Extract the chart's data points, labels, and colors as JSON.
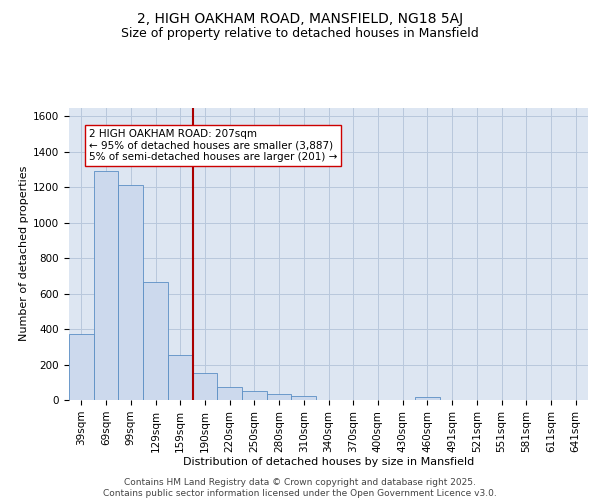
{
  "title": "2, HIGH OAKHAM ROAD, MANSFIELD, NG18 5AJ",
  "subtitle": "Size of property relative to detached houses in Mansfield",
  "xlabel": "Distribution of detached houses by size in Mansfield",
  "ylabel": "Number of detached properties",
  "categories": [
    "39sqm",
    "69sqm",
    "99sqm",
    "129sqm",
    "159sqm",
    "190sqm",
    "220sqm",
    "250sqm",
    "280sqm",
    "310sqm",
    "340sqm",
    "370sqm",
    "400sqm",
    "430sqm",
    "460sqm",
    "491sqm",
    "521sqm",
    "551sqm",
    "581sqm",
    "611sqm",
    "641sqm"
  ],
  "values": [
    375,
    1290,
    1215,
    665,
    255,
    155,
    75,
    50,
    35,
    25,
    0,
    0,
    0,
    0,
    15,
    0,
    0,
    0,
    0,
    0,
    0
  ],
  "bar_color": "#ccd9ed",
  "bar_edge_color": "#5b8ec4",
  "grid_color": "#b8c8dc",
  "background_color": "#dde6f2",
  "vline_x": 4.5,
  "vline_color": "#aa0000",
  "annotation_text": "2 HIGH OAKHAM ROAD: 207sqm\n← 95% of detached houses are smaller (3,887)\n5% of semi-detached houses are larger (201) →",
  "annotation_box_facecolor": "#ffffff",
  "annotation_box_edge": "#cc0000",
  "ylim": [
    0,
    1650
  ],
  "yticks": [
    0,
    200,
    400,
    600,
    800,
    1000,
    1200,
    1400,
    1600
  ],
  "footer_text": "Contains HM Land Registry data © Crown copyright and database right 2025.\nContains public sector information licensed under the Open Government Licence v3.0.",
  "title_fontsize": 10,
  "subtitle_fontsize": 9,
  "xlabel_fontsize": 8,
  "ylabel_fontsize": 8,
  "tick_fontsize": 7.5,
  "annotation_fontsize": 7.5,
  "footer_fontsize": 6.5
}
